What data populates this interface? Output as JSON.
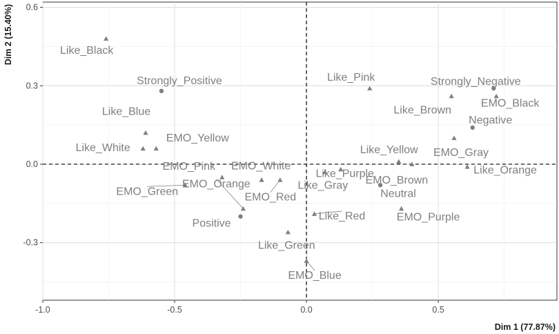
{
  "chart_data": {
    "type": "scatter",
    "title": "",
    "xlabel": "Dim 1 (77.87%)",
    "ylabel": "Dim 2 (15.40%)",
    "xlim": [
      -1.0,
      0.95
    ],
    "ylim": [
      -0.52,
      0.62
    ],
    "x_ticks": [
      -1.0,
      -0.5,
      0.0,
      0.5
    ],
    "x_tick_labels": [
      "-1.0",
      "-0.5",
      "0.0",
      "0.5"
    ],
    "y_ticks": [
      -0.3,
      0.0,
      0.3,
      0.6
    ],
    "y_tick_labels": [
      "-0.3",
      "0.0",
      "0.3",
      "0.6"
    ],
    "grid": true,
    "reference_lines": {
      "x": 0,
      "y": 0,
      "style": "dashed"
    },
    "marker_color": "#7f7f7f",
    "points": [
      {
        "label": "Like_Black",
        "x": -0.76,
        "y": 0.48,
        "marker": "triangle"
      },
      {
        "label": "Strongly_Positive",
        "x": -0.55,
        "y": 0.28,
        "marker": "circle"
      },
      {
        "label": "Like_Blue",
        "x": -0.61,
        "y": 0.12,
        "marker": "triangle"
      },
      {
        "label": "EMO_Yellow",
        "x": -0.57,
        "y": 0.06,
        "marker": "triangle"
      },
      {
        "label": "Like_White",
        "x": -0.62,
        "y": 0.06,
        "marker": "triangle"
      },
      {
        "label": "EMO_Pink",
        "x": -0.32,
        "y": -0.05,
        "marker": "triangle"
      },
      {
        "label": "EMO_White",
        "x": -0.17,
        "y": -0.06,
        "marker": "triangle"
      },
      {
        "label": "EMO_Orange",
        "x": -0.24,
        "y": -0.17,
        "marker": "triangle"
      },
      {
        "label": "EMO_Green",
        "x": -0.46,
        "y": -0.08,
        "marker": "triangle"
      },
      {
        "label": "EMO_Red",
        "x": -0.1,
        "y": -0.06,
        "marker": "triangle"
      },
      {
        "label": "Positive",
        "x": -0.25,
        "y": -0.2,
        "marker": "circle"
      },
      {
        "label": "Like_Green",
        "x": -0.07,
        "y": -0.26,
        "marker": "triangle"
      },
      {
        "label": "EMO_Blue",
        "x": 0.0,
        "y": -0.37,
        "marker": "triangle"
      },
      {
        "label": "Like_Gray",
        "x": 0.07,
        "y": -0.03,
        "marker": "triangle"
      },
      {
        "label": "Like_Purple",
        "x": 0.13,
        "y": -0.02,
        "marker": "triangle"
      },
      {
        "label": "Like_Red",
        "x": 0.03,
        "y": -0.19,
        "marker": "triangle"
      },
      {
        "label": "Like_Pink",
        "x": 0.24,
        "y": 0.29,
        "marker": "triangle"
      },
      {
        "label": "Like_Yellow",
        "x": 0.35,
        "y": 0.01,
        "marker": "triangle"
      },
      {
        "label": "EMO_Brown",
        "x": 0.4,
        "y": 0.0,
        "marker": "triangle"
      },
      {
        "label": "Neutral",
        "x": 0.28,
        "y": -0.08,
        "marker": "circle"
      },
      {
        "label": "EMO_Purple",
        "x": 0.36,
        "y": -0.17,
        "marker": "triangle"
      },
      {
        "label": "Strongly_Negative",
        "x": 0.71,
        "y": 0.29,
        "marker": "circle"
      },
      {
        "label": "EMO_Black",
        "x": 0.72,
        "y": 0.26,
        "marker": "triangle"
      },
      {
        "label": "Like_Brown",
        "x": 0.55,
        "y": 0.26,
        "marker": "triangle"
      },
      {
        "label": "Negative",
        "x": 0.63,
        "y": 0.14,
        "marker": "circle"
      },
      {
        "label": "EMO_Gray",
        "x": 0.56,
        "y": 0.1,
        "marker": "triangle"
      },
      {
        "label": "Like_Orange",
        "x": 0.61,
        "y": -0.01,
        "marker": "triangle"
      }
    ]
  }
}
